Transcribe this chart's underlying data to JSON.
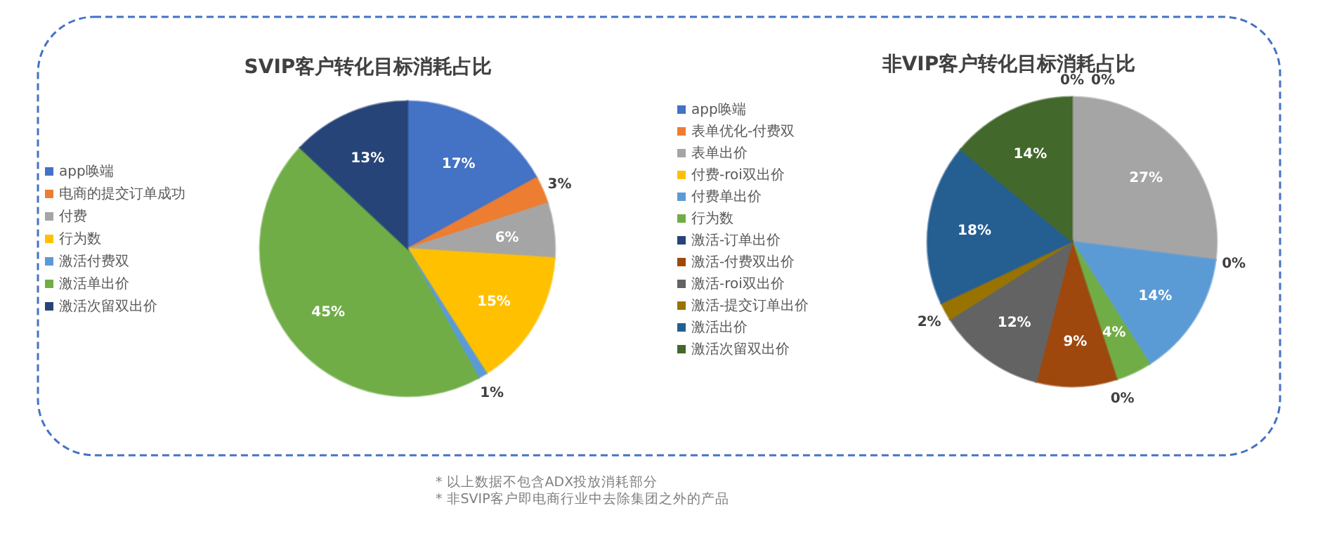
{
  "chart_data": [
    {
      "type": "pie",
      "title": "SVIP客户转化目标消耗占比",
      "legend": "left",
      "value_labels": [
        "17%",
        "3%",
        "6%",
        "15%",
        "1%",
        "45%",
        "13%"
      ],
      "categories": [
        "app唤端",
        "电商的提交订单成功",
        "付费",
        "行为数",
        "激活付费双",
        "激活单出价",
        "激活次留双出价"
      ],
      "values": [
        17,
        3,
        6,
        15,
        1,
        45,
        13
      ],
      "colors": [
        "#4472c4",
        "#ed7d31",
        "#a5a5a5",
        "#ffc000",
        "#5b9bd5",
        "#70ad47",
        "#264478"
      ]
    },
    {
      "type": "pie",
      "title": "非VIP客户转化目标消耗占比",
      "legend": "left",
      "value_labels": [
        "0%",
        "0%",
        "27%",
        "0%",
        "14%",
        "4%",
        "0%",
        "9%",
        "12%",
        "2%",
        "18%",
        "14%"
      ],
      "categories": [
        "app唤端",
        "表单优化-付费双",
        "表单出价",
        "付费-roi双出价",
        "付费单出价",
        "行为数",
        "激活-订单出价",
        "激活-付费双出价",
        "激活-roi双出价",
        "激活-提交订单出价",
        "激活出价",
        "激活次留双出价"
      ],
      "values": [
        0,
        0,
        27,
        0,
        14,
        4,
        0,
        9,
        12,
        2,
        18,
        14
      ],
      "colors": [
        "#4472c4",
        "#ed7d31",
        "#a5a5a5",
        "#ffc000",
        "#5b9bd5",
        "#70ad47",
        "#264478",
        "#9e480e",
        "#636363",
        "#997300",
        "#255e91",
        "#43682b"
      ],
      "annotations": [
        "* 以上数据不包含ADX投放消耗部分",
        "* 非SVIP客户即电商行业中去除集团之外的产品"
      ]
    }
  ]
}
